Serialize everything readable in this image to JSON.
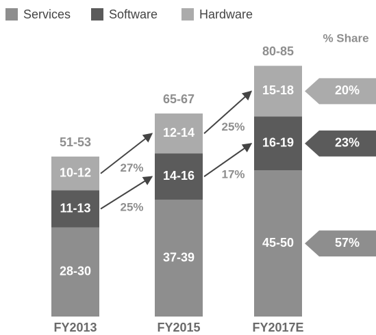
{
  "chart_data": {
    "type": "bar",
    "stacked": true,
    "categories": [
      "FY2013",
      "FY2015",
      "FY2017E"
    ],
    "total_labels": [
      "51-53",
      "65-67",
      "80-85"
    ],
    "share_title": "% Share",
    "series": [
      {
        "name": "Services",
        "color": "#8e8e8e",
        "values": [
          29,
          38,
          47.5
        ],
        "value_labels": [
          "28-30",
          "37-39",
          "45-50"
        ],
        "share": 57,
        "share_label": "57%"
      },
      {
        "name": "Software",
        "color": "#5b5b5b",
        "values": [
          12,
          15,
          17.5
        ],
        "value_labels": [
          "11-13",
          "14-16",
          "16-19"
        ],
        "share": 23,
        "share_label": "23%",
        "growth": [
          25,
          17
        ],
        "growth_labels": [
          "25%",
          "17%"
        ]
      },
      {
        "name": "Hardware",
        "color": "#ababab",
        "values": [
          11,
          13,
          16.5
        ],
        "value_labels": [
          "10-12",
          "12-14",
          "15-18"
        ],
        "share": 20,
        "share_label": "20%",
        "growth": [
          27,
          25
        ],
        "growth_labels": [
          "27%",
          "25%"
        ]
      }
    ]
  }
}
